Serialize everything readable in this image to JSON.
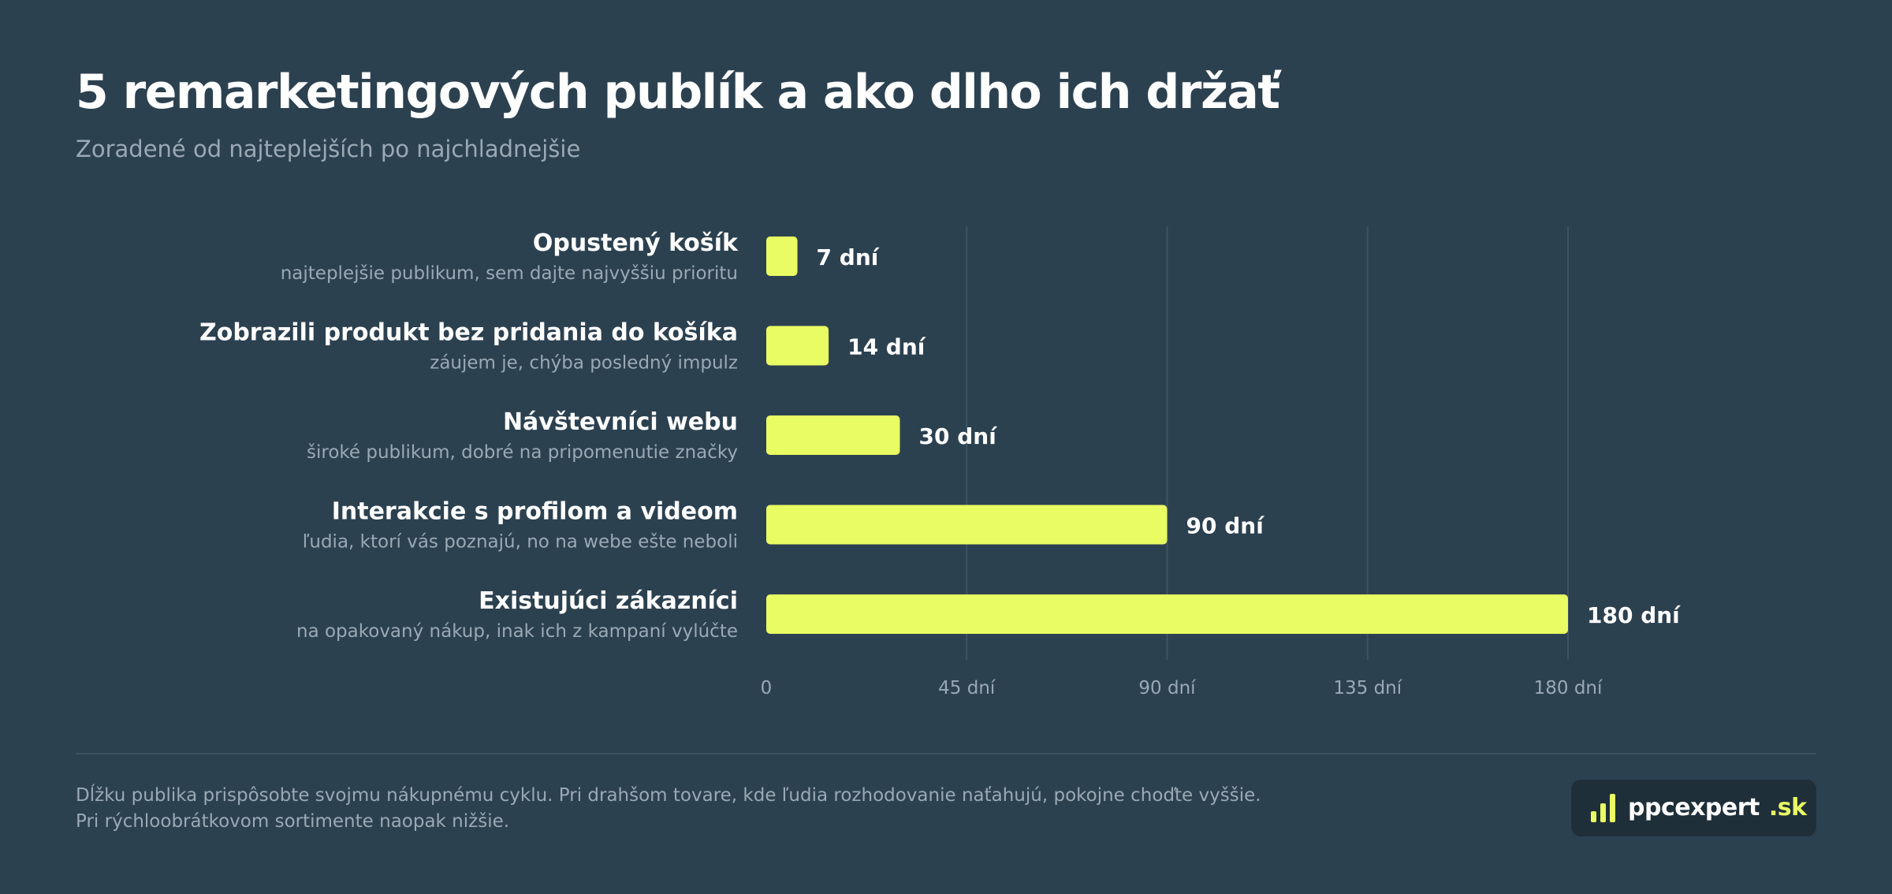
{
  "title": "5 remarketingových publík a ako dlho ich držať",
  "subtitle": "Zoradené od najteplejších po najchladnejšie",
  "chart_data": {
    "type": "bar",
    "orientation": "horizontal",
    "categories": [
      "Opustený košík",
      "Zobrazili produkt bez pridania do košíka",
      "Návštevníci webu",
      "Interakcie s profilom a videom",
      "Existujúci zákazníci"
    ],
    "descriptions": [
      "najteplejšie publikum, sem dajte najvyššiu prioritu",
      "záujem je, chýba posledný impulz",
      "široké publikum, dobré na pripomenutie značky",
      "ľudia, ktorí vás poznajú, no na webe ešte neboli",
      "na opakovaný nákup, inak ich z kampaní vylúčte"
    ],
    "values": [
      7,
      14,
      30,
      90,
      180
    ],
    "value_labels": [
      "7 dní",
      "14 dní",
      "30 dní",
      "90 dní",
      "180 dní"
    ],
    "xlim": [
      0,
      180
    ],
    "xticks": [
      0,
      45,
      90,
      135,
      180
    ],
    "xtick_labels": [
      "0",
      "45 dní",
      "90 dní",
      "135 dní",
      "180 dní"
    ],
    "grid": true,
    "colors": {
      "bar": "#e9fc63",
      "background": "#2c4150",
      "grid": "#3d5362",
      "category_text": "#ffffff",
      "description_text": "#9aa9b4",
      "tick_text": "#9aa9b4"
    }
  },
  "footer": {
    "note_line1": "Dĺžku publika prispôsobte svojmu nákupnému cyklu. Pri drahšom tovare, kde ľudia rozhodovanie naťahujú, pokojne choďte vyššie.",
    "note_line2": "Pri rýchloobrátkovom sortimente naopak nižšie.",
    "logo_icon": "bar-chart-icon",
    "logo_name": "ppcexpert",
    "logo_tld": ".sk"
  }
}
